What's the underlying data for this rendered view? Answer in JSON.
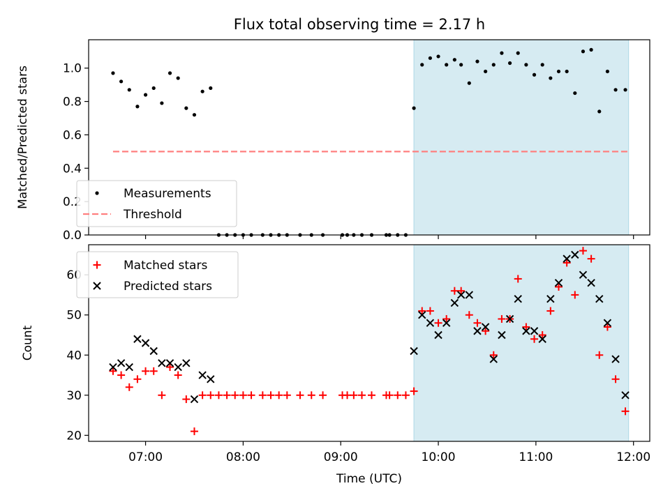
{
  "title": "Flux total observing time = 2.17 h",
  "xlabel": "Time (UTC)",
  "x_ticks": [
    "07:00",
    "08:00",
    "09:00",
    "10:00",
    "11:00",
    "12:00"
  ],
  "shaded_region": {
    "start": "09:45",
    "end": "11:57",
    "color": "#add8e6"
  },
  "colors": {
    "measurements": "#000000",
    "threshold": "#ff7f7f",
    "matched": "#ff0000",
    "predicted": "#000000"
  },
  "chart_data": [
    {
      "type": "scatter",
      "ylabel": "Matched/Predicted stars",
      "xlim": [
        "06:25",
        "12:10"
      ],
      "ylim": [
        0,
        1.17
      ],
      "y_ticks": [
        "0.0",
        "0.2",
        "0.4",
        "0.6",
        "0.8",
        "1.0"
      ],
      "legend_position": "lower-left",
      "series": [
        {
          "name": "Measurements",
          "marker": "dot",
          "points": [
            [
              "06:40",
              0.97
            ],
            [
              "06:45",
              0.92
            ],
            [
              "06:50",
              0.87
            ],
            [
              "06:55",
              0.77
            ],
            [
              "07:00",
              0.84
            ],
            [
              "07:05",
              0.88
            ],
            [
              "07:10",
              0.79
            ],
            [
              "07:15",
              0.97
            ],
            [
              "07:20",
              0.94
            ],
            [
              "07:25",
              0.76
            ],
            [
              "07:30",
              0.72
            ],
            [
              "07:35",
              0.86
            ],
            [
              "07:40",
              0.88
            ],
            [
              "07:45",
              0.0
            ],
            [
              "07:50",
              0.0
            ],
            [
              "07:55",
              0.0
            ],
            [
              "08:00",
              0.0
            ],
            [
              "08:05",
              0.0
            ],
            [
              "08:12",
              0.0
            ],
            [
              "08:17",
              0.0
            ],
            [
              "08:22",
              0.0
            ],
            [
              "08:27",
              0.0
            ],
            [
              "08:35",
              0.0
            ],
            [
              "08:42",
              0.0
            ],
            [
              "08:49",
              0.0
            ],
            [
              "09:01",
              0.0
            ],
            [
              "09:04",
              0.0
            ],
            [
              "09:08",
              0.0
            ],
            [
              "09:13",
              0.0
            ],
            [
              "09:19",
              0.0
            ],
            [
              "09:28",
              0.0
            ],
            [
              "09:30",
              0.0
            ],
            [
              "09:35",
              0.0
            ],
            [
              "09:40",
              0.0
            ],
            [
              "09:45",
              0.76
            ],
            [
              "09:50",
              1.02
            ],
            [
              "09:55",
              1.06
            ],
            [
              "10:00",
              1.07
            ],
            [
              "10:05",
              1.02
            ],
            [
              "10:10",
              1.05
            ],
            [
              "10:14",
              1.02
            ],
            [
              "10:19",
              0.91
            ],
            [
              "10:24",
              1.04
            ],
            [
              "10:29",
              0.98
            ],
            [
              "10:34",
              1.02
            ],
            [
              "10:39",
              1.09
            ],
            [
              "10:44",
              1.03
            ],
            [
              "10:49",
              1.09
            ],
            [
              "10:54",
              1.02
            ],
            [
              "10:59",
              0.96
            ],
            [
              "11:04",
              1.02
            ],
            [
              "11:09",
              0.94
            ],
            [
              "11:14",
              0.98
            ],
            [
              "11:19",
              0.98
            ],
            [
              "11:24",
              0.85
            ],
            [
              "11:29",
              1.1
            ],
            [
              "11:34",
              1.11
            ],
            [
              "11:39",
              0.74
            ],
            [
              "11:44",
              0.98
            ],
            [
              "11:49",
              0.87
            ],
            [
              "11:55",
              0.87
            ]
          ]
        },
        {
          "name": "Threshold",
          "marker": "dashed-line",
          "points": [
            [
              "06:40",
              0.5
            ],
            [
              "11:57",
              0.5
            ]
          ]
        }
      ]
    },
    {
      "type": "scatter",
      "ylabel": "Count",
      "xlim": [
        "06:25",
        "12:10"
      ],
      "ylim": [
        18.5,
        67.5
      ],
      "y_ticks": [
        "20",
        "30",
        "40",
        "50",
        "60"
      ],
      "legend_position": "upper-left",
      "series": [
        {
          "name": "Matched stars",
          "marker": "plus",
          "points": [
            [
              "06:40",
              36
            ],
            [
              "06:45",
              35
            ],
            [
              "06:50",
              32
            ],
            [
              "06:55",
              34
            ],
            [
              "07:00",
              36
            ],
            [
              "07:05",
              36
            ],
            [
              "07:10",
              30
            ],
            [
              "07:15",
              37
            ],
            [
              "07:20",
              35
            ],
            [
              "07:25",
              29
            ],
            [
              "07:30",
              21
            ],
            [
              "07:35",
              30
            ],
            [
              "07:40",
              30
            ],
            [
              "07:45",
              30
            ],
            [
              "07:50",
              30
            ],
            [
              "07:55",
              30
            ],
            [
              "08:00",
              30
            ],
            [
              "08:05",
              30
            ],
            [
              "08:12",
              30
            ],
            [
              "08:17",
              30
            ],
            [
              "08:22",
              30
            ],
            [
              "08:27",
              30
            ],
            [
              "08:35",
              30
            ],
            [
              "08:42",
              30
            ],
            [
              "08:49",
              30
            ],
            [
              "09:01",
              30
            ],
            [
              "09:04",
              30
            ],
            [
              "09:08",
              30
            ],
            [
              "09:13",
              30
            ],
            [
              "09:19",
              30
            ],
            [
              "09:28",
              30
            ],
            [
              "09:30",
              30
            ],
            [
              "09:35",
              30
            ],
            [
              "09:40",
              30
            ],
            [
              "09:45",
              31
            ],
            [
              "09:50",
              51
            ],
            [
              "09:55",
              51
            ],
            [
              "10:00",
              48
            ],
            [
              "10:05",
              49
            ],
            [
              "10:10",
              56
            ],
            [
              "10:14",
              56
            ],
            [
              "10:19",
              50
            ],
            [
              "10:24",
              48
            ],
            [
              "10:29",
              46
            ],
            [
              "10:34",
              40
            ],
            [
              "10:39",
              49
            ],
            [
              "10:44",
              49
            ],
            [
              "10:49",
              59
            ],
            [
              "10:54",
              47
            ],
            [
              "10:59",
              44
            ],
            [
              "11:04",
              45
            ],
            [
              "11:09",
              51
            ],
            [
              "11:14",
              57
            ],
            [
              "11:19",
              63
            ],
            [
              "11:24",
              55
            ],
            [
              "11:29",
              66
            ],
            [
              "11:34",
              64
            ],
            [
              "11:39",
              40
            ],
            [
              "11:44",
              47
            ],
            [
              "11:49",
              34
            ],
            [
              "11:55",
              26
            ]
          ]
        },
        {
          "name": "Predicted stars",
          "marker": "x",
          "points": [
            [
              "06:40",
              37
            ],
            [
              "06:45",
              38
            ],
            [
              "06:50",
              37
            ],
            [
              "06:55",
              44
            ],
            [
              "07:00",
              43
            ],
            [
              "07:05",
              41
            ],
            [
              "07:10",
              38
            ],
            [
              "07:15",
              38
            ],
            [
              "07:20",
              37
            ],
            [
              "07:25",
              38
            ],
            [
              "07:30",
              29
            ],
            [
              "07:35",
              35
            ],
            [
              "07:40",
              34
            ],
            [
              "09:45",
              41
            ],
            [
              "09:50",
              50
            ],
            [
              "09:55",
              48
            ],
            [
              "10:00",
              45
            ],
            [
              "10:05",
              48
            ],
            [
              "10:10",
              53
            ],
            [
              "10:14",
              55
            ],
            [
              "10:19",
              55
            ],
            [
              "10:24",
              46
            ],
            [
              "10:29",
              47
            ],
            [
              "10:34",
              39
            ],
            [
              "10:39",
              45
            ],
            [
              "10:44",
              49
            ],
            [
              "10:49",
              54
            ],
            [
              "10:54",
              46
            ],
            [
              "10:59",
              46
            ],
            [
              "11:04",
              44
            ],
            [
              "11:09",
              54
            ],
            [
              "11:14",
              58
            ],
            [
              "11:19",
              64
            ],
            [
              "11:24",
              65
            ],
            [
              "11:29",
              60
            ],
            [
              "11:34",
              58
            ],
            [
              "11:39",
              54
            ],
            [
              "11:44",
              48
            ],
            [
              "11:49",
              39
            ],
            [
              "11:55",
              30
            ]
          ]
        }
      ]
    }
  ]
}
